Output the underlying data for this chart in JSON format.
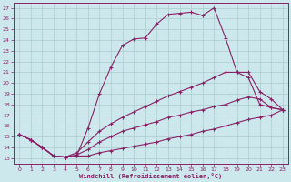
{
  "xlabel": "Windchill (Refroidissement éolien,°C)",
  "xlim": [
    -0.5,
    23.5
  ],
  "ylim": [
    12.5,
    27.5
  ],
  "xticks": [
    0,
    1,
    2,
    3,
    4,
    5,
    6,
    7,
    8,
    9,
    10,
    11,
    12,
    13,
    14,
    15,
    16,
    17,
    18,
    19,
    20,
    21,
    22,
    23
  ],
  "yticks": [
    13,
    14,
    15,
    16,
    17,
    18,
    19,
    20,
    21,
    22,
    23,
    24,
    25,
    26,
    27
  ],
  "background_color": "#cce8ec",
  "grid_color": "#aacccc",
  "line_color": "#882266",
  "lines": [
    {
      "x": [
        0,
        1,
        2,
        3,
        4,
        5,
        6,
        7,
        8,
        9,
        10,
        11,
        12,
        13,
        14,
        15,
        16,
        17,
        18,
        19,
        20,
        21,
        22,
        23
      ],
      "y": [
        15.2,
        14.7,
        14.0,
        13.2,
        13.1,
        13.2,
        15.8,
        19.0,
        21.5,
        23.5,
        24.1,
        24.2,
        25.5,
        26.4,
        26.5,
        26.6,
        26.3,
        27.0,
        24.2,
        21.0,
        20.5,
        18.0,
        17.7,
        17.5
      ]
    },
    {
      "x": [
        0,
        1,
        2,
        3,
        4,
        5,
        6,
        7,
        8,
        9,
        10,
        11,
        12,
        13,
        14,
        15,
        16,
        17,
        18,
        19,
        20,
        21,
        22,
        23
      ],
      "y": [
        15.2,
        14.7,
        14.0,
        13.2,
        13.1,
        13.5,
        14.5,
        15.5,
        16.2,
        16.8,
        17.3,
        17.8,
        18.3,
        18.8,
        19.2,
        19.6,
        20.0,
        20.5,
        21.0,
        21.0,
        21.0,
        19.2,
        18.5,
        17.5
      ]
    },
    {
      "x": [
        0,
        1,
        2,
        3,
        4,
        5,
        6,
        7,
        8,
        9,
        10,
        11,
        12,
        13,
        14,
        15,
        16,
        17,
        18,
        19,
        20,
        21,
        22,
        23
      ],
      "y": [
        15.2,
        14.7,
        14.0,
        13.2,
        13.1,
        13.3,
        13.8,
        14.5,
        15.0,
        15.5,
        15.8,
        16.1,
        16.4,
        16.8,
        17.0,
        17.3,
        17.5,
        17.8,
        18.0,
        18.4,
        18.7,
        18.5,
        17.7,
        17.5
      ]
    },
    {
      "x": [
        0,
        1,
        2,
        3,
        4,
        5,
        6,
        7,
        8,
        9,
        10,
        11,
        12,
        13,
        14,
        15,
        16,
        17,
        18,
        19,
        20,
        21,
        22,
        23
      ],
      "y": [
        15.2,
        14.7,
        14.0,
        13.2,
        13.1,
        13.2,
        13.2,
        13.5,
        13.7,
        13.9,
        14.1,
        14.3,
        14.5,
        14.8,
        15.0,
        15.2,
        15.5,
        15.7,
        16.0,
        16.3,
        16.6,
        16.8,
        17.0,
        17.5
      ]
    }
  ]
}
